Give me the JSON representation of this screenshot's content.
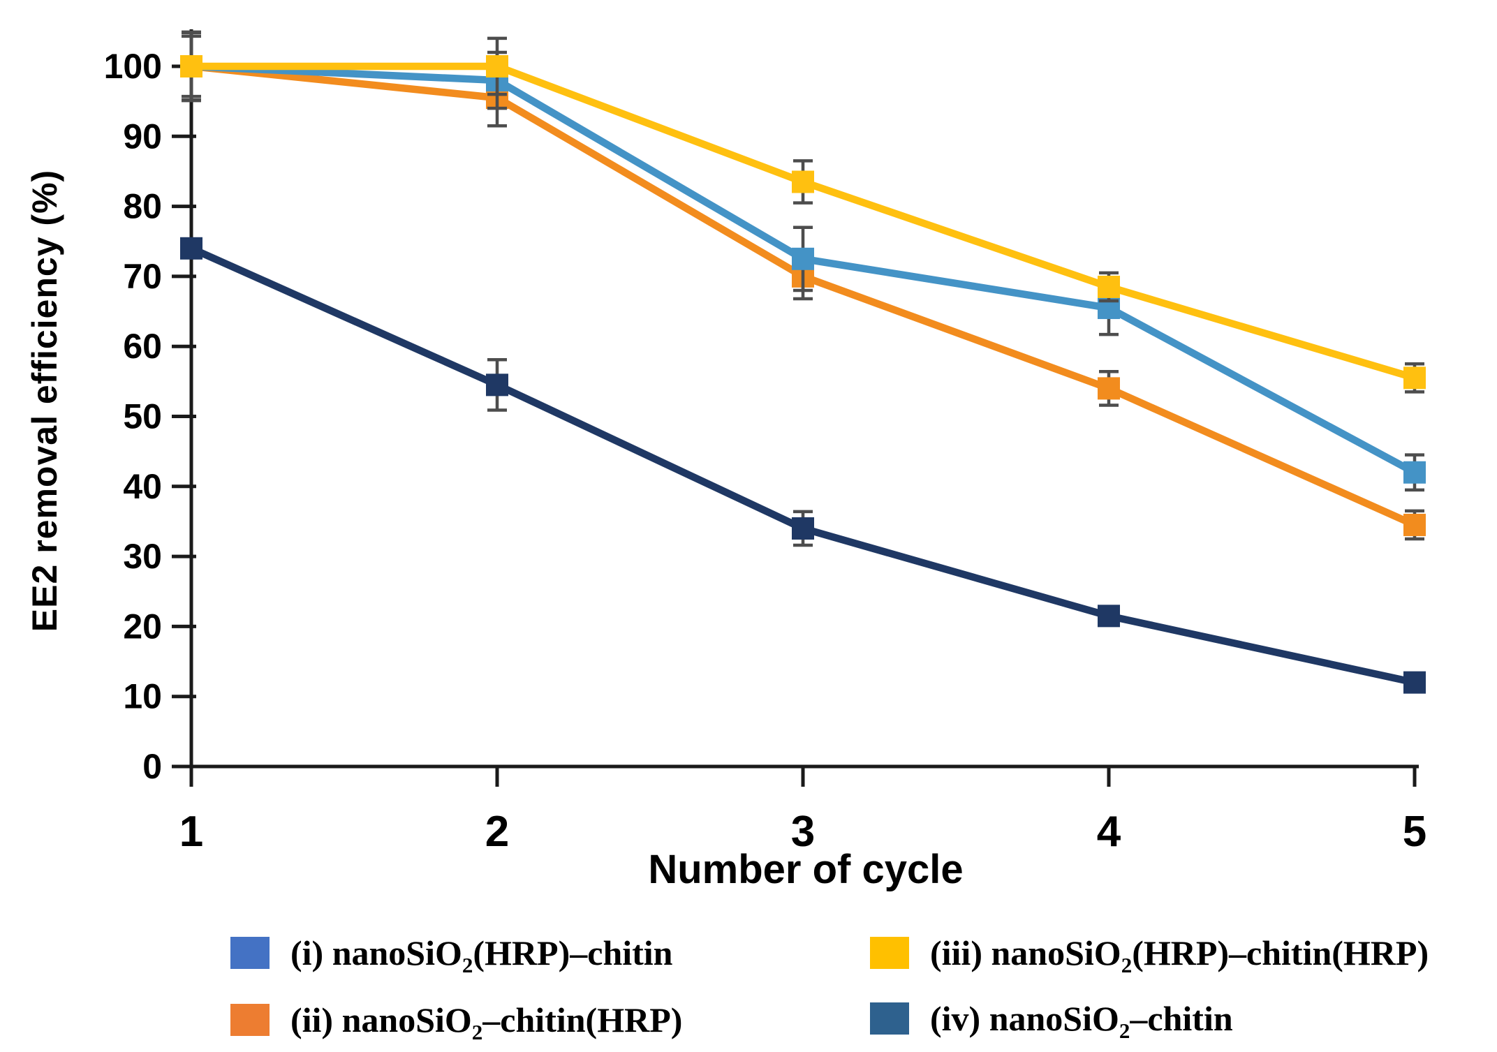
{
  "figure": {
    "y_axis_label": "EE2 removal  efficiency (%)",
    "x_axis_label": "Number of cycle"
  },
  "chart_data": {
    "type": "line",
    "x": [
      1,
      2,
      3,
      4,
      5
    ],
    "xlabel": "Number of cycle",
    "ylabel": "EE2 removal efficiency (%)",
    "ylim": [
      0,
      100
    ],
    "yticks": [
      0,
      10,
      20,
      30,
      40,
      50,
      60,
      70,
      80,
      90,
      100
    ],
    "grid": false,
    "error_bars": true,
    "legend_position": "bottom",
    "marker": "square",
    "series": [
      {
        "id": "i",
        "name": "(i) nanoSiO2(HRP)–chitin",
        "color": "#4493C6",
        "legend_swatch": "#4472C4",
        "values": [
          100,
          98,
          72.5,
          65.5,
          42
        ],
        "errors": [
          4.3,
          4.0,
          4.5,
          3.8,
          2.5
        ]
      },
      {
        "id": "ii",
        "name": "(ii) nanoSiO2–chitin(HRP)",
        "color": "#F28C1E",
        "legend_swatch": "#ED7D31",
        "values": [
          100,
          95.5,
          70,
          54,
          34.5
        ],
        "errors": [
          4.8,
          4.0,
          3.2,
          2.4,
          2.0
        ]
      },
      {
        "id": "iii",
        "name": "(iii) nanoSiO2(HRP)–chitin(HRP)",
        "color": "#FFC010",
        "legend_swatch": "#FFC000",
        "values": [
          100,
          100,
          83.5,
          68.5,
          55.5
        ],
        "errors": [
          4.9,
          4.0,
          3.0,
          2.0,
          2.0
        ]
      },
      {
        "id": "iv",
        "name": "(iv) nanoSiO2–chitin",
        "color": "#1F3864",
        "legend_swatch": "#2E618E",
        "values": [
          74,
          54.5,
          34,
          21.5,
          12
        ],
        "errors": [
          0,
          3.6,
          2.4,
          0,
          0
        ]
      }
    ],
    "draw_order": [
      3,
      1,
      0,
      2
    ],
    "axis_color": "#1A1A1A",
    "error_bar_color": "#4D4D4D"
  },
  "legend": {
    "items": [
      {
        "label_a": "(i) nanoSiO",
        "sub": "2",
        "label_b": "(HRP)–chitin",
        "swatch": "#4472C4"
      },
      {
        "label_a": "(ii) nanoSiO",
        "sub": "2",
        "label_b": "–chitin(HRP)",
        "swatch": "#ED7D31"
      },
      {
        "label_a": "(iii) nanoSiO",
        "sub": "2",
        "label_b": "(HRP)–chitin(HRP)",
        "swatch": "#FFC000"
      },
      {
        "label_a": "(iv) nanoSiO",
        "sub": "2",
        "label_b": "–chitin",
        "swatch": "#2E618E"
      }
    ]
  }
}
